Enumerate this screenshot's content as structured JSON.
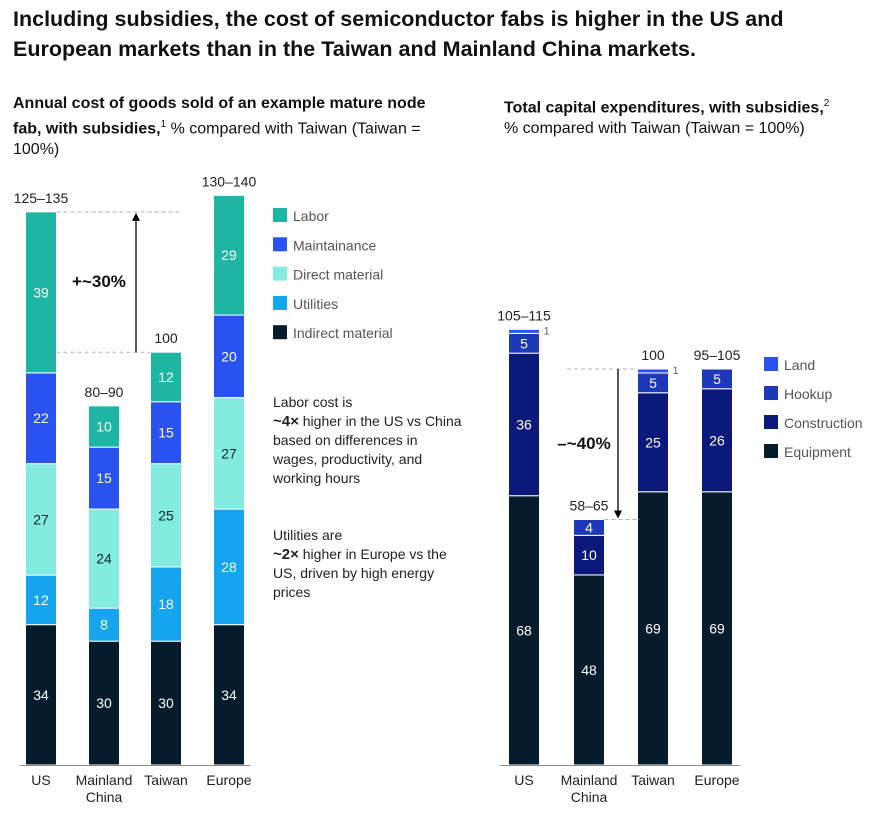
{
  "title": "Including subsidies, the cost of semiconductor fabs is higher in the US and European markets than in the Taiwan and Mainland China markets.",
  "colors": {
    "labor": "#1fb5a3",
    "maintainance": "#2a52ee",
    "direct_material": "#84ebe1",
    "utilities": "#16a4ee",
    "indirect_material": "#061b2c",
    "land": "#2a52ee",
    "hookup": "#1e39b7",
    "construction": "#0b1a7a",
    "equipment": "#061b2c",
    "annotation": "#000000",
    "dashed": "#b3b3b3",
    "axis": "#888888"
  },
  "left_chart": {
    "subtitle_bold": "Annual cost of goods sold of an example mature node fab, with subsidies,",
    "subtitle_sup": "1",
    "subtitle_rest": "% compared with Taiwan (Taiwan = 100%)",
    "annotation": "+~30%",
    "note1": {
      "pre": "Labor cost is",
      "bold": "~4×",
      "post": "higher in the US vs China based on differences in wages, productivity, and working hours"
    },
    "note2": {
      "pre": "Utilities are",
      "bold": "~2×",
      "post": "higher in Europe vs the US, driven by high energy prices"
    }
  },
  "right_chart": {
    "subtitle_bold": "Total capital expenditures, with subsidies,",
    "subtitle_sup": "2",
    "subtitle_rest": "% compared with Taiwan (Taiwan = 100%)",
    "annotation": "–~40%"
  },
  "chart_data": [
    {
      "type": "bar",
      "stacked": true,
      "title": "Annual cost of goods sold of an example mature node fab, with subsidies, % compared with Taiwan (Taiwan = 100%)",
      "categories": [
        "US",
        "Mainland China",
        "Taiwan",
        "Europe"
      ],
      "category_lines": [
        [
          "US"
        ],
        [
          "Mainland",
          "China"
        ],
        [
          "Taiwan"
        ],
        [
          "Europe"
        ]
      ],
      "totals": [
        "125–135",
        "80–90",
        "100",
        "130–140"
      ],
      "legend": [
        "Labor",
        "Maintainance",
        "Direct material",
        "Utilities",
        "Indirect material"
      ],
      "series": [
        {
          "name": "Indirect material",
          "color_key": "indirect_material",
          "values": [
            34,
            30,
            30,
            34
          ]
        },
        {
          "name": "Utilities",
          "color_key": "utilities",
          "values": [
            12,
            8,
            18,
            28
          ]
        },
        {
          "name": "Direct material",
          "color_key": "direct_material",
          "values": [
            27,
            24,
            25,
            27
          ]
        },
        {
          "name": "Maintainance",
          "color_key": "maintainance",
          "values": [
            22,
            15,
            15,
            20
          ]
        },
        {
          "name": "Labor",
          "color_key": "labor",
          "values": [
            39,
            10,
            12,
            29
          ]
        }
      ],
      "ylim": [
        0,
        140
      ]
    },
    {
      "type": "bar",
      "stacked": true,
      "title": "Total capital expenditures, with subsidies, % compared with Taiwan (Taiwan = 100%)",
      "categories": [
        "US",
        "Mainland China",
        "Taiwan",
        "Europe"
      ],
      "category_lines": [
        [
          "US"
        ],
        [
          "Mainland",
          "China"
        ],
        [
          "Taiwan"
        ],
        [
          "Europe"
        ]
      ],
      "totals": [
        "105–115",
        "58–65",
        "100",
        "95–105"
      ],
      "legend": [
        "Land",
        "Hookup",
        "Construction",
        "Equipment"
      ],
      "series": [
        {
          "name": "Equipment",
          "color_key": "equipment",
          "values": [
            68,
            48,
            69,
            69
          ]
        },
        {
          "name": "Construction",
          "color_key": "construction",
          "values": [
            36,
            10,
            25,
            26
          ]
        },
        {
          "name": "Hookup",
          "color_key": "hookup",
          "values": [
            5,
            4,
            5,
            5
          ]
        },
        {
          "name": "Land",
          "color_key": "land",
          "values": [
            1,
            0,
            1,
            0
          ]
        }
      ],
      "ylim": [
        0,
        110
      ]
    }
  ]
}
